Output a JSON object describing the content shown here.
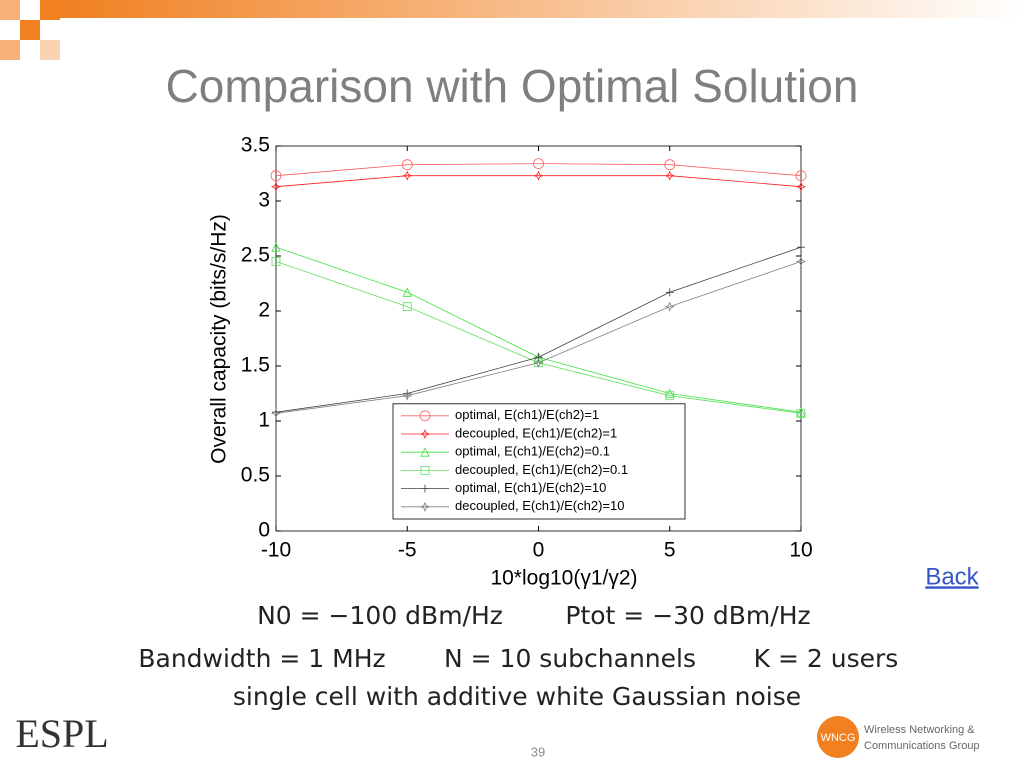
{
  "slide": {
    "title": "Comparison with Optimal Solution",
    "link": "Back",
    "page_number": "39",
    "notes": [
      "N0 = −100 dBm/Hz",
      "Ptot = −30 dBm/Hz",
      "Bandwidth = 1 MHz",
      "N = 10 subchannels",
      "K = 2 users",
      "single cell with additive white Gaussian noise"
    ],
    "logos": {
      "left": "ESPL",
      "right_badge": "WNCG",
      "right_line1": "Wireless Networking &",
      "right_line2": "Communications Group"
    }
  },
  "chart_data": {
    "type": "line",
    "x": [
      -10,
      -5,
      0,
      5,
      10
    ],
    "xlabel": "10*log10(γ1/γ2)",
    "ylabel": "Overall capacity (bits/s/Hz)",
    "xlim": [
      -10,
      10
    ],
    "xticks": [
      -10,
      -5,
      0,
      5,
      10
    ],
    "ylim": [
      0,
      3.5
    ],
    "yticks": [
      0,
      0.5,
      1,
      1.5,
      2,
      2.5,
      3,
      3.5
    ],
    "grid": false,
    "legend": "lower center",
    "series": [
      {
        "name": "optimal, E(ch1)/E(ch2)=1",
        "color": "#ff6060",
        "marker": "circle",
        "values": [
          3.23,
          3.33,
          3.34,
          3.33,
          3.23
        ]
      },
      {
        "name": "decoupled, E(ch1)/E(ch2)=1",
        "color": "#ff2020",
        "marker": "star",
        "values": [
          3.13,
          3.23,
          3.23,
          3.23,
          3.13
        ]
      },
      {
        "name": "optimal, E(ch1)/E(ch2)=0.1",
        "color": "#40e040",
        "marker": "triangle",
        "values": [
          2.58,
          2.17,
          1.58,
          1.25,
          1.08
        ]
      },
      {
        "name": "decoupled, E(ch1)/E(ch2)=0.1",
        "color": "#60e060",
        "marker": "square",
        "values": [
          2.45,
          2.04,
          1.53,
          1.23,
          1.07
        ]
      },
      {
        "name": "optimal, E(ch1)/E(ch2)=10",
        "color": "#404040",
        "marker": "plus",
        "values": [
          1.08,
          1.25,
          1.58,
          2.17,
          2.58
        ]
      },
      {
        "name": "decoupled, E(ch1)/E(ch2)=10",
        "color": "#808080",
        "marker": "star",
        "values": [
          1.07,
          1.23,
          1.53,
          2.04,
          2.45
        ]
      }
    ]
  }
}
